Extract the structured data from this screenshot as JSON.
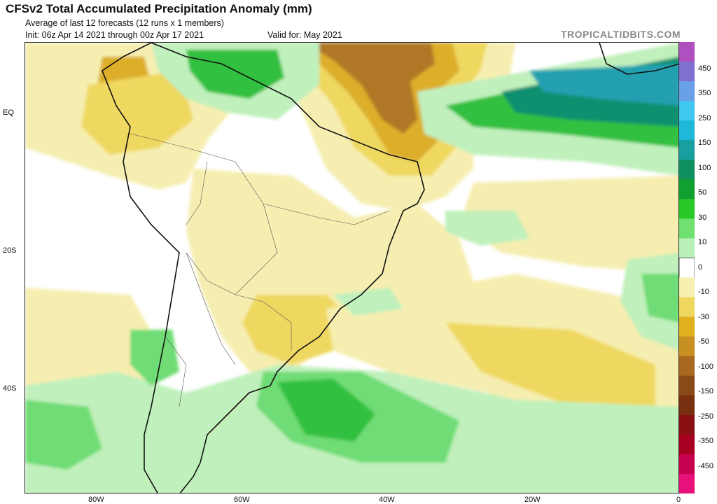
{
  "header": {
    "title": "CFSv2 Total Accumulated Precipitation Anomaly (mm)",
    "subtitle": "Average of last 12 forecasts (12 runs x 1 members)",
    "init": "Init: 06z Apr 14 2021 through 00z Apr 17 2021",
    "valid": "Valid for: May 2021",
    "credit": "TROPICALTIDBITS.COM"
  },
  "axes": {
    "lat_labels": [
      "EQ",
      "20S",
      "40S"
    ],
    "lon_labels": [
      "80W",
      "60W",
      "40W",
      "20W",
      "0"
    ]
  },
  "colorbar": {
    "labels": [
      "450",
      "350",
      "250",
      "150",
      "100",
      "50",
      "30",
      "10",
      "0",
      "-10",
      "-30",
      "-50",
      "-100",
      "-150",
      "-250",
      "-350",
      "-450"
    ],
    "colors": [
      "#b04fc0",
      "#8070d0",
      "#6aa0e8",
      "#40c8f0",
      "#20b8d8",
      "#18a0a0",
      "#109060",
      "#10a030",
      "#28c828",
      "#70e070",
      "#b8f0b8",
      "#ffffff",
      "#f8f0b0",
      "#f0d860",
      "#e0b020",
      "#c89020",
      "#a86820",
      "#8a4a18",
      "#783010",
      "#881010",
      "#a80020",
      "#c80050",
      "#e8107a"
    ]
  },
  "map": {
    "palette": {
      "dry1": "#f6eeb0",
      "dry2": "#efd860",
      "dry3": "#dcae2a",
      "dry4": "#b07828",
      "dry5": "#8a5a24",
      "wet1": "#c0f0bc",
      "wet2": "#70dc74",
      "wet3": "#30c040",
      "wet4": "#10a050",
      "wet5": "#109070",
      "wet6": "#20a0b0",
      "land_line": "#111111",
      "border_line": "#555555"
    }
  }
}
